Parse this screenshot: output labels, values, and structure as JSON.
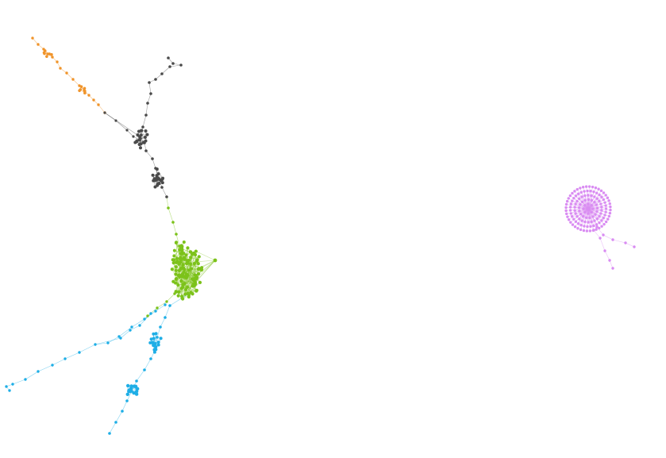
{
  "graph": {
    "background": "#ffffff",
    "clusters": [
      {
        "id": "orange",
        "color": "#f0942a"
      },
      {
        "id": "dark",
        "color": "#4a4a4a"
      },
      {
        "id": "green",
        "color": "#7cc21a"
      },
      {
        "id": "blue",
        "color": "#1eaee6"
      },
      {
        "id": "purple",
        "color": "#d98cf2"
      }
    ]
  }
}
